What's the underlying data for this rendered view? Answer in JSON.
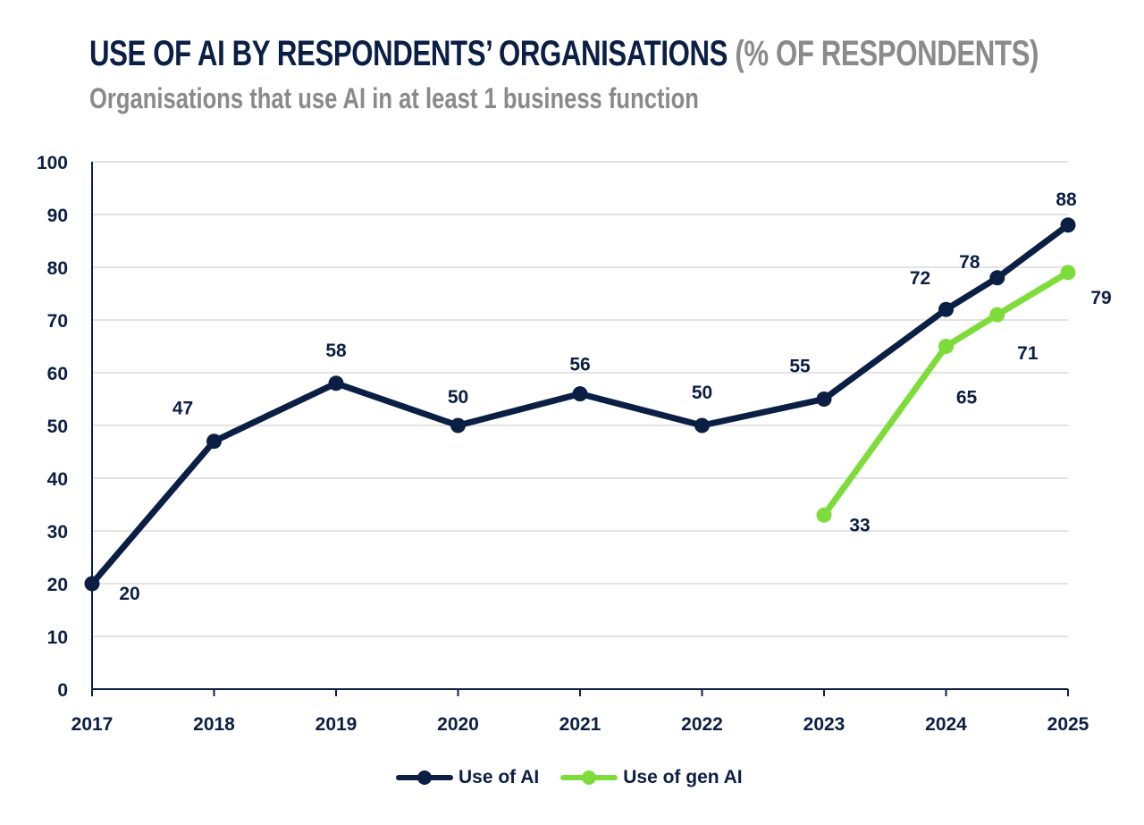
{
  "chart_data": {
    "type": "line",
    "title": "USE OF AI BY RESPONDENTS’ ORGANISATIONS",
    "title_unit": "(% OF RESPONDENTS)",
    "subtitle": "Organisations that use AI in at least 1 business function",
    "xlabel": "",
    "ylabel": "",
    "ylim": [
      0,
      100
    ],
    "yticks": [
      "0",
      "10",
      "20",
      "30",
      "40",
      "50",
      "60",
      "70",
      "80",
      "90",
      "100"
    ],
    "xticks": [
      "2017",
      "2018",
      "2019",
      "2020",
      "2021",
      "2022",
      "2023",
      "2024",
      "2025"
    ],
    "xlim": [
      2017,
      2025
    ],
    "grid": true,
    "legend_position": "bottom-center",
    "series": [
      {
        "name": "Use of AI",
        "color": "#0b1f45",
        "x": [
          2017,
          2018,
          2019,
          2020,
          2021,
          2022,
          2023,
          2024,
          2024.42,
          2025
        ],
        "values": [
          20,
          47,
          58,
          50,
          56,
          50,
          55,
          72,
          78,
          88
        ]
      },
      {
        "name": "Use of gen AI",
        "color": "#7ddc3a",
        "x": [
          2023,
          2024,
          2024.42,
          2025
        ],
        "values": [
          33,
          65,
          71,
          79
        ]
      }
    ]
  }
}
